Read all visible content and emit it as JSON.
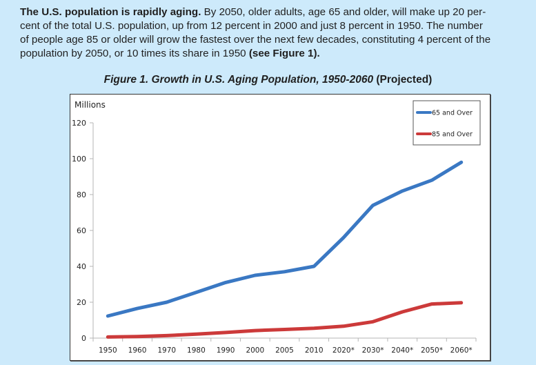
{
  "intro": {
    "bold_lead": "The U.S. population is rapidly aging.",
    "line1_rest": " By 2050, older adults, age 65 and older, will make up 20 per-",
    "line2": "cent of the total U.S. population, up from 12 percent in 2000 and just 8 percent in 1950. The number",
    "line3": "of people age 85 or older will grow the fastest over the next few decades, constituting 4 percent of the",
    "line4": "population by 2050, or 10 times its share in 1950 ",
    "line4_bold": "(see Figure 1)."
  },
  "figure": {
    "title_italic": "Figure 1. Growth in U.S. Aging Population, 1950-2060",
    "title_suffix": " (Projected)"
  },
  "chart_data": {
    "type": "line",
    "title": "Figure 1. Growth in U.S. Aging Population, 1950-2060 (Projected)",
    "xlabel": "",
    "ylabel": "Millions",
    "ylim": [
      0,
      120
    ],
    "yticks": [
      0,
      20,
      40,
      60,
      80,
      100,
      120
    ],
    "grid": false,
    "legend_position": "top-right",
    "categories": [
      "1950",
      "1960",
      "1970",
      "1980",
      "1990",
      "2000",
      "2005",
      "2010",
      "2020*",
      "2030*",
      "2040*",
      "2050*",
      "2060*"
    ],
    "series": [
      {
        "name": "65 and Over",
        "color": "#3a78c3",
        "values": [
          12.3,
          16.5,
          20,
          25.5,
          31,
          35,
          37,
          40,
          56,
          74,
          82,
          88,
          98
        ]
      },
      {
        "name": "85 and Over",
        "color": "#cc3a3a",
        "values": [
          0.6,
          0.9,
          1.4,
          2.2,
          3.1,
          4.2,
          4.8,
          5.5,
          6.6,
          9.1,
          14.6,
          19,
          19.7
        ]
      }
    ]
  }
}
